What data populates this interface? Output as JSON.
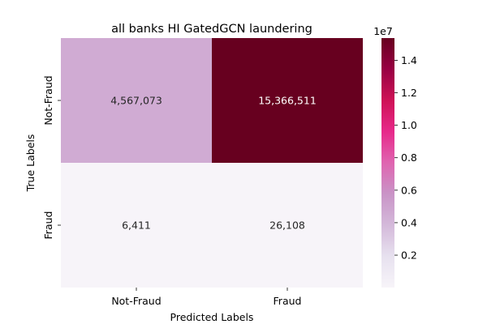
{
  "chart_data": {
    "type": "heatmap",
    "title": "all banks HI GatedGCN laundering",
    "xlabel": "Predicted Labels",
    "ylabel": "True Labels",
    "x_categories": [
      "Not-Fraud",
      "Fraud"
    ],
    "y_categories": [
      "Not-Fraud",
      "Fraud"
    ],
    "values": [
      [
        4567073,
        15366511
      ],
      [
        6411,
        26108
      ]
    ],
    "cell_labels": [
      [
        "4,567,073",
        "15,366,511"
      ],
      [
        "6,411",
        "26,108"
      ]
    ],
    "colormap": "PuRd",
    "colorbar": {
      "range": [
        6411,
        15366511
      ],
      "ticks": [
        0.2,
        0.4,
        0.6,
        0.8,
        1.0,
        1.2,
        1.4
      ],
      "tick_labels": [
        "0.2",
        "0.4",
        "0.6",
        "0.8",
        "1.0",
        "1.2",
        "1.4"
      ],
      "multiplier_label": "1e7",
      "tick_scale": 10000000
    }
  }
}
